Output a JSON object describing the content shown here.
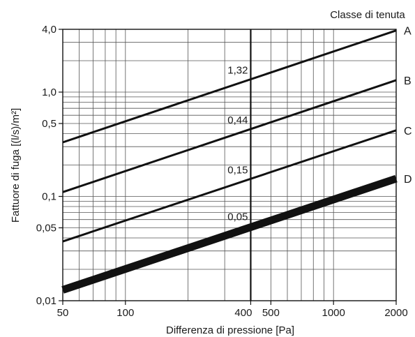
{
  "chart_data": {
    "type": "line",
    "xlabel": "Differenza di pressione [Pa]",
    "ylabel": "Fattuore di fuga [(l/s)/m²]",
    "legend_title": "Classe di tenuta",
    "x_scale": "log",
    "y_scale": "log",
    "xlim": [
      50,
      2000
    ],
    "ylim": [
      0.01,
      4.0
    ],
    "grid": true,
    "x_major_ticks": [
      {
        "value": 50,
        "label": "50"
      },
      {
        "value": 100,
        "label": "100"
      },
      {
        "value": 400,
        "label": "400"
      },
      {
        "value": 500,
        "label": "500"
      },
      {
        "value": 1000,
        "label": "1000"
      },
      {
        "value": 2000,
        "label": "2000"
      }
    ],
    "x_grid": [
      50,
      60,
      70,
      80,
      90,
      100,
      200,
      300,
      400,
      500,
      600,
      700,
      800,
      900,
      1000,
      2000
    ],
    "y_major_ticks": [
      {
        "value": 4.0,
        "label": "4,0"
      },
      {
        "value": 1.0,
        "label": "1,0"
      },
      {
        "value": 0.5,
        "label": "0,5"
      },
      {
        "value": 0.1,
        "label": "0,1"
      },
      {
        "value": 0.05,
        "label": "0,05"
      },
      {
        "value": 0.01,
        "label": "0,01"
      }
    ],
    "y_grid": [
      0.01,
      0.02,
      0.03,
      0.04,
      0.05,
      0.06,
      0.07,
      0.08,
      0.09,
      0.1,
      0.2,
      0.3,
      0.4,
      0.5,
      0.6,
      0.7,
      0.8,
      0.9,
      1.0,
      2.0,
      3.0,
      4.0
    ],
    "reference_x": 400,
    "series": [
      {
        "name": "A",
        "x": [
          50,
          2000
        ],
        "y": [
          0.33,
          3.9
        ],
        "value_at_reference": "1,32",
        "weight": "normal"
      },
      {
        "name": "B",
        "x": [
          50,
          2000
        ],
        "y": [
          0.11,
          1.3
        ],
        "value_at_reference": "0,44",
        "weight": "normal"
      },
      {
        "name": "C",
        "x": [
          50,
          2000
        ],
        "y": [
          0.037,
          0.43
        ],
        "value_at_reference": "0,15",
        "weight": "normal"
      },
      {
        "name": "D",
        "x": [
          50,
          2000
        ],
        "y": [
          0.0127,
          0.148
        ],
        "value_at_reference": "0,05",
        "weight": "bold"
      }
    ]
  }
}
